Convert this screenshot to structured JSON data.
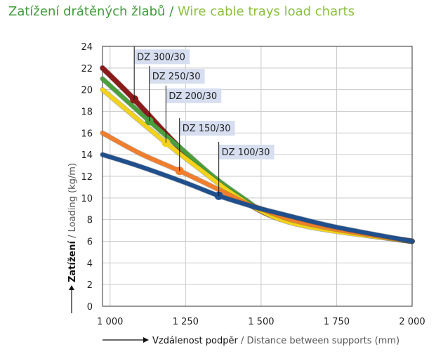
{
  "title": {
    "cz": "Zatížení drátěných žlabů",
    "separator": " / ",
    "en": "Wire cable trays load charts"
  },
  "colors": {
    "title_cz": "#3f9a3a",
    "title_en": "#8bbf3e",
    "dz300": "#8b1a1a",
    "dz250": "#4a9f3c",
    "dz200": "#f2d21a",
    "dz150": "#f07e2c",
    "dz100": "#1f4f8c",
    "label_bg": "#d6def0"
  },
  "chart_data": {
    "type": "line",
    "title": "",
    "xlabel": {
      "cz": "Vzdálenost podpěr",
      "separator": " / ",
      "en": "Distance between supports (mm)"
    },
    "ylabel": {
      "cz": "Zatížení",
      "separator": " / ",
      "en": "Loading (kg/m)"
    },
    "xlim": [
      975,
      2000
    ],
    "ylim": [
      0,
      24
    ],
    "x_ticks": [
      1000,
      1250,
      1500,
      1750,
      2000
    ],
    "x_tick_labels": [
      "1 000",
      "1 250",
      "1 500",
      "1 750",
      "2 000"
    ],
    "y_ticks": [
      0,
      2,
      4,
      6,
      8,
      10,
      12,
      14,
      16,
      18,
      20,
      22,
      24
    ],
    "y_tick_labels": [
      "0",
      "2",
      "4",
      "6",
      "8",
      "10",
      "12",
      "14",
      "16",
      "18",
      "20",
      "22",
      "24"
    ],
    "grid": true,
    "series": [
      {
        "name": "DZ 300/30",
        "color": "#8b1a1a",
        "x": [
          975,
          1080,
          1200,
          1300,
          1400,
          1500,
          1600,
          1750,
          2000
        ],
        "y": [
          22,
          19.1,
          15.5,
          12.8,
          10.6,
          8.8,
          7.8,
          7.0,
          6.0
        ],
        "marker": [
          1080,
          19.1
        ],
        "label_anchor": [
          1080,
          23.2
        ]
      },
      {
        "name": "DZ 250/30",
        "color": "#4a9f3c",
        "x": [
          975,
          1130,
          1250,
          1350,
          1450,
          1500,
          1600,
          1750,
          2000
        ],
        "y": [
          21,
          17.1,
          14.2,
          11.8,
          9.8,
          8.9,
          7.9,
          7.1,
          6.0
        ],
        "marker": [
          1130,
          17.1
        ],
        "label_anchor": [
          1130,
          21.4
        ]
      },
      {
        "name": "DZ 200/30",
        "color": "#f2d21a",
        "x": [
          975,
          1185,
          1300,
          1400,
          1500,
          1600,
          1750,
          2000
        ],
        "y": [
          20,
          15.1,
          12.6,
          10.5,
          8.8,
          7.7,
          6.9,
          6.0
        ],
        "marker": [
          1185,
          15.1
        ],
        "label_anchor": [
          1185,
          19.6
        ]
      },
      {
        "name": "DZ 150/30",
        "color": "#f07e2c",
        "x": [
          975,
          1100,
          1230,
          1350,
          1450,
          1500,
          1600,
          1750,
          2000
        ],
        "y": [
          16,
          14.1,
          12.5,
          10.9,
          9.5,
          9.0,
          8.0,
          7.1,
          6.0
        ],
        "marker": [
          1230,
          12.5
        ],
        "label_anchor": [
          1230,
          16.6
        ]
      },
      {
        "name": "DZ 100/30",
        "color": "#1f4f8c",
        "x": [
          975,
          1100,
          1250,
          1360,
          1450,
          1500,
          1600,
          1750,
          2000
        ],
        "y": [
          14,
          12.9,
          11.4,
          10.2,
          9.4,
          9.0,
          8.3,
          7.3,
          6.0
        ],
        "marker": [
          1360,
          10.2
        ],
        "label_anchor": [
          1360,
          14.4
        ]
      }
    ]
  }
}
